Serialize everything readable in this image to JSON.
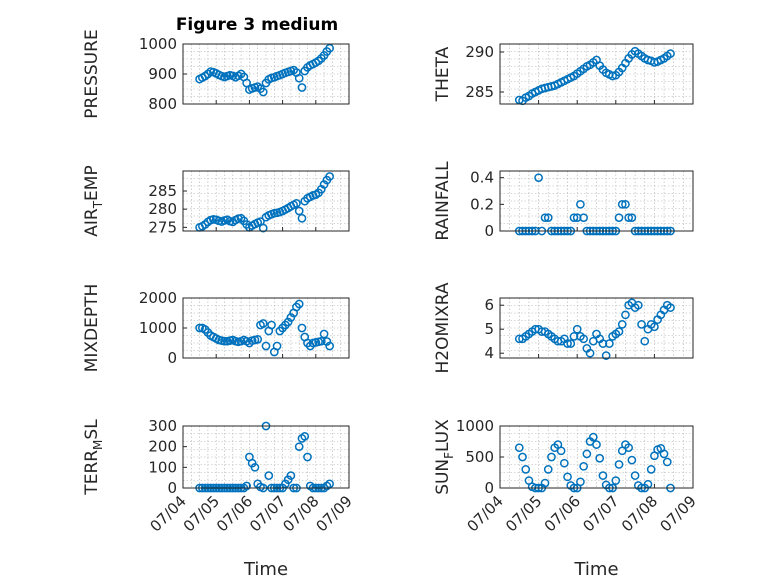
{
  "figure": {
    "title": "Figure 3 medium",
    "marker_color": "#0072BD",
    "axis_color": "#262626"
  },
  "chart_data": [
    {
      "type": "scatter",
      "ylabel": "PRESSURE",
      "ylim": [
        800,
        1000
      ],
      "yticks": [
        800,
        900,
        1000
      ],
      "xlabel": "",
      "xticks": [
        "07/04",
        "07/05",
        "07/06",
        "07/07",
        "07/08",
        "07/09"
      ],
      "show_xticklabels": false,
      "x": [
        "07/04 12:00",
        "07/04 14:00",
        "07/04 16:00",
        "07/04 18:00",
        "07/04 20:00",
        "07/04 22:00",
        "07/05 00:00",
        "07/05 02:00",
        "07/05 04:00",
        "07/05 06:00",
        "07/05 08:00",
        "07/05 10:00",
        "07/05 12:00",
        "07/05 14:00",
        "07/05 16:00",
        "07/05 18:00",
        "07/05 20:00",
        "07/05 22:00",
        "07/06 00:00",
        "07/06 02:00",
        "07/06 04:00",
        "07/06 06:00",
        "07/06 08:00",
        "07/06 10:00",
        "07/06 12:00",
        "07/06 14:00",
        "07/06 16:00",
        "07/06 18:00",
        "07/06 20:00",
        "07/06 22:00",
        "07/07 00:00",
        "07/07 02:00",
        "07/07 04:00",
        "07/07 06:00",
        "07/07 08:00",
        "07/07 10:00",
        "07/07 12:00",
        "07/07 14:00",
        "07/07 16:00",
        "07/07 18:00",
        "07/07 20:00",
        "07/07 22:00",
        "07/08 00:00",
        "07/08 02:00",
        "07/08 04:00",
        "07/08 06:00",
        "07/08 08:00",
        "07/08 10:00"
      ],
      "y": [
        883,
        888,
        893,
        900,
        908,
        906,
        902,
        897,
        893,
        890,
        893,
        896,
        894,
        889,
        894,
        900,
        890,
        870,
        848,
        852,
        855,
        858,
        851,
        840,
        870,
        882,
        887,
        889,
        893,
        896,
        900,
        904,
        907,
        910,
        913,
        905,
        886,
        855,
        910,
        922,
        929,
        933,
        938,
        944,
        952,
        962,
        975,
        986
      ]
    },
    {
      "type": "scatter",
      "ylabel": "THETA",
      "ylim": [
        283.5,
        291
      ],
      "yticks": [
        285,
        290
      ],
      "xlabel": "",
      "xticks": [
        "07/04",
        "07/05",
        "07/06",
        "07/07",
        "07/08",
        "07/09"
      ],
      "show_xticklabels": false,
      "x": [
        "07/04 12:00",
        "07/04 14:00",
        "07/04 16:00",
        "07/04 18:00",
        "07/04 20:00",
        "07/04 22:00",
        "07/05 00:00",
        "07/05 02:00",
        "07/05 04:00",
        "07/05 06:00",
        "07/05 08:00",
        "07/05 10:00",
        "07/05 12:00",
        "07/05 14:00",
        "07/05 16:00",
        "07/05 18:00",
        "07/05 20:00",
        "07/05 22:00",
        "07/06 00:00",
        "07/06 02:00",
        "07/06 04:00",
        "07/06 06:00",
        "07/06 08:00",
        "07/06 10:00",
        "07/06 12:00",
        "07/06 14:00",
        "07/06 16:00",
        "07/06 18:00",
        "07/06 20:00",
        "07/06 22:00",
        "07/07 00:00",
        "07/07 02:00",
        "07/07 04:00",
        "07/07 06:00",
        "07/07 08:00",
        "07/07 10:00",
        "07/07 12:00",
        "07/07 14:00",
        "07/07 16:00",
        "07/07 18:00",
        "07/07 20:00",
        "07/07 22:00",
        "07/08 00:00",
        "07/08 02:00",
        "07/08 04:00",
        "07/08 06:00",
        "07/08 08:00",
        "07/08 10:00"
      ],
      "y": [
        284,
        283.9,
        284.3,
        284.5,
        284.8,
        285,
        285.2,
        285.4,
        285.5,
        285.6,
        285.7,
        285.8,
        286,
        286.2,
        286.4,
        286.6,
        286.8,
        287,
        287.3,
        287.6,
        287.9,
        288.2,
        288.4,
        288.7,
        289,
        288.3,
        287.8,
        287.4,
        287.2,
        287,
        287.1,
        287.5,
        288,
        288.6,
        289.2,
        289.7,
        290.1,
        289.8,
        289.5,
        289.2,
        289,
        288.9,
        288.7,
        288.8,
        289,
        289.2,
        289.5,
        289.8
      ]
    },
    {
      "type": "scatter",
      "ylabel": "AIR_TEMP",
      "ylim": [
        274,
        290.5
      ],
      "yticks": [
        275,
        280,
        285
      ],
      "xlabel": "",
      "xticks": [
        "07/04",
        "07/05",
        "07/06",
        "07/07",
        "07/08",
        "07/09"
      ],
      "show_xticklabels": false,
      "x": [
        "07/04 12:00",
        "07/04 14:00",
        "07/04 16:00",
        "07/04 18:00",
        "07/04 20:00",
        "07/04 22:00",
        "07/05 00:00",
        "07/05 02:00",
        "07/05 04:00",
        "07/05 06:00",
        "07/05 08:00",
        "07/05 10:00",
        "07/05 12:00",
        "07/05 14:00",
        "07/05 16:00",
        "07/05 18:00",
        "07/05 20:00",
        "07/05 22:00",
        "07/06 00:00",
        "07/06 02:00",
        "07/06 04:00",
        "07/06 06:00",
        "07/06 08:00",
        "07/06 10:00",
        "07/06 12:00",
        "07/06 14:00",
        "07/06 16:00",
        "07/06 18:00",
        "07/06 20:00",
        "07/06 22:00",
        "07/07 00:00",
        "07/07 02:00",
        "07/07 04:00",
        "07/07 06:00",
        "07/07 08:00",
        "07/07 10:00",
        "07/07 12:00",
        "07/07 14:00",
        "07/07 16:00",
        "07/07 18:00",
        "07/07 20:00",
        "07/07 22:00",
        "07/08 00:00",
        "07/08 02:00",
        "07/08 04:00",
        "07/08 06:00",
        "07/08 08:00",
        "07/08 10:00"
      ],
      "y": [
        275,
        275.3,
        275.8,
        276.5,
        277,
        277.2,
        277.1,
        276.8,
        276.6,
        276.9,
        277.1,
        276.7,
        276.5,
        277,
        277.4,
        277.5,
        276.8,
        275.8,
        275,
        275.5,
        275.9,
        276.3,
        276.6,
        274.8,
        277.8,
        278.3,
        278.6,
        278.9,
        279,
        279.2,
        279.5,
        279.9,
        280.3,
        280.8,
        281.2,
        281.6,
        279.5,
        277.5,
        282.2,
        283,
        283.4,
        283.8,
        284,
        284.5,
        285.5,
        286.8,
        288,
        289
      ]
    },
    {
      "type": "scatter",
      "ylabel": "RAINFALL",
      "ylim": [
        0,
        0.45
      ],
      "yticks": [
        0,
        0.2,
        0.4
      ],
      "xlabel": "",
      "xticks": [
        "07/04",
        "07/05",
        "07/06",
        "07/07",
        "07/08",
        "07/09"
      ],
      "show_xticklabels": false,
      "x": [
        "07/04 12:00",
        "07/04 14:00",
        "07/04 16:00",
        "07/04 18:00",
        "07/04 20:00",
        "07/04 22:00",
        "07/05 00:00",
        "07/05 02:00",
        "07/05 04:00",
        "07/05 06:00",
        "07/05 08:00",
        "07/05 10:00",
        "07/05 12:00",
        "07/05 14:00",
        "07/05 16:00",
        "07/05 18:00",
        "07/05 20:00",
        "07/05 22:00",
        "07/06 00:00",
        "07/06 02:00",
        "07/06 04:00",
        "07/06 06:00",
        "07/06 08:00",
        "07/06 10:00",
        "07/06 12:00",
        "07/06 14:00",
        "07/06 16:00",
        "07/06 18:00",
        "07/06 20:00",
        "07/06 22:00",
        "07/07 00:00",
        "07/07 02:00",
        "07/07 04:00",
        "07/07 06:00",
        "07/07 08:00",
        "07/07 10:00",
        "07/07 12:00",
        "07/07 14:00",
        "07/07 16:00",
        "07/07 18:00",
        "07/07 20:00",
        "07/07 22:00",
        "07/08 00:00",
        "07/08 02:00",
        "07/08 04:00",
        "07/08 06:00",
        "07/08 08:00",
        "07/08 10:00"
      ],
      "y": [
        0,
        0,
        0,
        0,
        0,
        0,
        0.4,
        0,
        0.1,
        0.1,
        0,
        0,
        0,
        0,
        0,
        0,
        0,
        0.1,
        0.1,
        0.2,
        0.1,
        0,
        0,
        0,
        0,
        0,
        0,
        0,
        0,
        0,
        0,
        0.1,
        0.2,
        0.2,
        0.1,
        0.1,
        0,
        0,
        0,
        0,
        0,
        0,
        0,
        0,
        0,
        0,
        0,
        0
      ]
    },
    {
      "type": "scatter",
      "ylabel": "MIXDEPTH",
      "ylim": [
        0,
        2000
      ],
      "yticks": [
        0,
        1000,
        2000
      ],
      "xlabel": "",
      "xticks": [
        "07/04",
        "07/05",
        "07/06",
        "07/07",
        "07/08",
        "07/09"
      ],
      "show_xticklabels": false,
      "x": [
        "07/04 12:00",
        "07/04 14:00",
        "07/04 16:00",
        "07/04 18:00",
        "07/04 20:00",
        "07/04 22:00",
        "07/05 00:00",
        "07/05 02:00",
        "07/05 04:00",
        "07/05 06:00",
        "07/05 08:00",
        "07/05 10:00",
        "07/05 12:00",
        "07/05 14:00",
        "07/05 16:00",
        "07/05 18:00",
        "07/05 20:00",
        "07/05 22:00",
        "07/06 00:00",
        "07/06 02:00",
        "07/06 04:00",
        "07/06 06:00",
        "07/06 08:00",
        "07/06 10:00",
        "07/06 12:00",
        "07/06 14:00",
        "07/06 16:00",
        "07/06 18:00",
        "07/06 20:00",
        "07/06 22:00",
        "07/07 00:00",
        "07/07 02:00",
        "07/07 04:00",
        "07/07 06:00",
        "07/07 08:00",
        "07/07 10:00",
        "07/07 12:00",
        "07/07 14:00",
        "07/07 16:00",
        "07/07 18:00",
        "07/07 20:00",
        "07/07 22:00",
        "07/08 00:00",
        "07/08 02:00",
        "07/08 04:00",
        "07/08 06:00",
        "07/08 08:00",
        "07/08 10:00"
      ],
      "y": [
        1000,
        1000,
        950,
        850,
        750,
        700,
        650,
        600,
        580,
        560,
        560,
        580,
        600,
        560,
        540,
        560,
        600,
        560,
        500,
        580,
        600,
        620,
        1100,
        1150,
        400,
        900,
        1100,
        200,
        400,
        900,
        1000,
        1100,
        1200,
        1350,
        1500,
        1700,
        1800,
        1000,
        700,
        500,
        400,
        500,
        520,
        540,
        560,
        800,
        550,
        400
      ]
    },
    {
      "type": "scatter",
      "ylabel": "H2OMIXRA",
      "ylim": [
        3.8,
        6.3
      ],
      "yticks": [
        4,
        5,
        6
      ],
      "xlabel": "",
      "xticks": [
        "07/04",
        "07/05",
        "07/06",
        "07/07",
        "07/08",
        "07/09"
      ],
      "show_xticklabels": false,
      "x": [
        "07/04 12:00",
        "07/04 14:00",
        "07/04 16:00",
        "07/04 18:00",
        "07/04 20:00",
        "07/04 22:00",
        "07/05 00:00",
        "07/05 02:00",
        "07/05 04:00",
        "07/05 06:00",
        "07/05 08:00",
        "07/05 10:00",
        "07/05 12:00",
        "07/05 14:00",
        "07/05 16:00",
        "07/05 18:00",
        "07/05 20:00",
        "07/05 22:00",
        "07/06 00:00",
        "07/06 02:00",
        "07/06 04:00",
        "07/06 06:00",
        "07/06 08:00",
        "07/06 10:00",
        "07/06 12:00",
        "07/06 14:00",
        "07/06 16:00",
        "07/06 18:00",
        "07/06 20:00",
        "07/06 22:00",
        "07/07 00:00",
        "07/07 02:00",
        "07/07 04:00",
        "07/07 06:00",
        "07/07 08:00",
        "07/07 10:00",
        "07/07 12:00",
        "07/07 14:00",
        "07/07 16:00",
        "07/07 18:00",
        "07/07 20:00",
        "07/07 22:00",
        "07/08 00:00",
        "07/08 02:00",
        "07/08 04:00",
        "07/08 06:00",
        "07/08 08:00",
        "07/08 10:00"
      ],
      "y": [
        4.6,
        4.6,
        4.7,
        4.8,
        4.9,
        5.0,
        5.0,
        4.9,
        4.9,
        4.8,
        4.7,
        4.6,
        4.5,
        4.5,
        4.6,
        4.4,
        4.4,
        4.7,
        5.0,
        4.7,
        4.6,
        4.2,
        4.0,
        4.5,
        4.8,
        4.6,
        4.4,
        3.9,
        4.4,
        4.7,
        4.8,
        4.9,
        5.2,
        5.6,
        6.0,
        6.1,
        5.9,
        6.0,
        5.2,
        4.5,
        5.0,
        5.2,
        5.1,
        5.4,
        5.6,
        5.8,
        6.0,
        5.9
      ]
    },
    {
      "type": "scatter",
      "ylabel": "TERR_MSL",
      "ylim": [
        0,
        300
      ],
      "yticks": [
        0,
        100,
        200,
        300
      ],
      "xlabel": "Time",
      "xticks": [
        "07/04",
        "07/05",
        "07/06",
        "07/07",
        "07/08",
        "07/09"
      ],
      "show_xticklabels": true,
      "x": [
        "07/04 12:00",
        "07/04 14:00",
        "07/04 16:00",
        "07/04 18:00",
        "07/04 20:00",
        "07/04 22:00",
        "07/05 00:00",
        "07/05 02:00",
        "07/05 04:00",
        "07/05 06:00",
        "07/05 08:00",
        "07/05 10:00",
        "07/05 12:00",
        "07/05 14:00",
        "07/05 16:00",
        "07/05 18:00",
        "07/05 20:00",
        "07/05 22:00",
        "07/06 00:00",
        "07/06 02:00",
        "07/06 04:00",
        "07/06 06:00",
        "07/06 08:00",
        "07/06 10:00",
        "07/06 12:00",
        "07/06 14:00",
        "07/06 16:00",
        "07/06 18:00",
        "07/06 20:00",
        "07/06 22:00",
        "07/07 00:00",
        "07/07 02:00",
        "07/07 04:00",
        "07/07 06:00",
        "07/07 08:00",
        "07/07 10:00",
        "07/07 12:00",
        "07/07 14:00",
        "07/07 16:00",
        "07/07 18:00",
        "07/07 20:00",
        "07/07 22:00",
        "07/08 00:00",
        "07/08 02:00",
        "07/08 04:00",
        "07/08 06:00",
        "07/08 08:00",
        "07/08 10:00"
      ],
      "y": [
        0,
        0,
        0,
        0,
        0,
        0,
        0,
        0,
        0,
        0,
        0,
        0,
        0,
        0,
        0,
        0,
        0,
        10,
        150,
        120,
        100,
        20,
        5,
        0,
        300,
        60,
        0,
        0,
        0,
        0,
        0,
        20,
        40,
        60,
        0,
        0,
        200,
        240,
        250,
        150,
        10,
        0,
        0,
        0,
        0,
        0,
        10,
        20
      ]
    },
    {
      "type": "scatter",
      "ylabel": "SUN_FLUX",
      "ylim": [
        0,
        1000
      ],
      "yticks": [
        0,
        500,
        1000
      ],
      "xlabel": "Time",
      "xticks": [
        "07/04",
        "07/05",
        "07/06",
        "07/07",
        "07/08",
        "07/09"
      ],
      "show_xticklabels": true,
      "x": [
        "07/04 12:00",
        "07/04 14:00",
        "07/04 16:00",
        "07/04 18:00",
        "07/04 20:00",
        "07/04 22:00",
        "07/05 00:00",
        "07/05 02:00",
        "07/05 04:00",
        "07/05 06:00",
        "07/05 08:00",
        "07/05 10:00",
        "07/05 12:00",
        "07/05 14:00",
        "07/05 16:00",
        "07/05 18:00",
        "07/05 20:00",
        "07/05 22:00",
        "07/06 00:00",
        "07/06 02:00",
        "07/06 04:00",
        "07/06 06:00",
        "07/06 08:00",
        "07/06 10:00",
        "07/06 12:00",
        "07/06 14:00",
        "07/06 16:00",
        "07/06 18:00",
        "07/06 20:00",
        "07/06 22:00",
        "07/07 00:00",
        "07/07 02:00",
        "07/07 04:00",
        "07/07 06:00",
        "07/07 08:00",
        "07/07 10:00",
        "07/07 12:00",
        "07/07 14:00",
        "07/07 16:00",
        "07/07 18:00",
        "07/07 20:00",
        "07/07 22:00",
        "07/08 00:00",
        "07/08 02:00",
        "07/08 04:00",
        "07/08 06:00",
        "07/08 08:00",
        "07/08 10:00"
      ],
      "y": [
        650,
        500,
        300,
        120,
        20,
        0,
        0,
        0,
        80,
        300,
        500,
        650,
        700,
        600,
        400,
        180,
        40,
        0,
        0,
        100,
        350,
        550,
        750,
        820,
        700,
        480,
        200,
        50,
        0,
        0,
        120,
        380,
        600,
        700,
        650,
        450,
        200,
        40,
        0,
        0,
        60,
        300,
        520,
        620,
        640,
        550,
        420,
        0
      ]
    }
  ]
}
